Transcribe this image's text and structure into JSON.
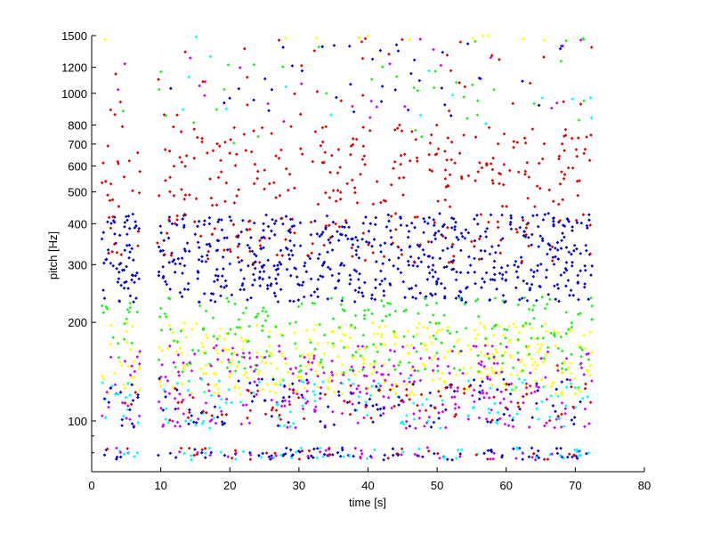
{
  "chart_data": {
    "type": "scatter",
    "title": "",
    "xlabel": "time [s]",
    "ylabel": "pitch [Hz]",
    "xlim": [
      0,
      80
    ],
    "ylim": [
      70,
      1500
    ],
    "y_scale": "log",
    "grid": false,
    "x_ticks": [
      0,
      10,
      20,
      30,
      40,
      50,
      60,
      70,
      80
    ],
    "x_tick_labels": [
      "0",
      "10",
      "20",
      "30",
      "40",
      "50",
      "60",
      "70",
      "80"
    ],
    "y_ticks": [
      100,
      200,
      300,
      400,
      500,
      600,
      700,
      800,
      1000,
      1200,
      1500
    ],
    "y_tick_labels": [
      "100",
      "200",
      "300",
      "400",
      "500",
      "600",
      "700",
      "800",
      "1000",
      "1200",
      "1500"
    ],
    "y_minor_ticks": [
      80,
      90
    ],
    "series_colors": {
      "blue": "#0000cc",
      "red": "#dd0000",
      "green": "#22ee22",
      "yellow": "#ffff00",
      "magenta": "#cc00ff",
      "cyan": "#00ffff"
    },
    "point_clusters": [
      {
        "color": "blue",
        "pitch_hz": [
          230,
          430
        ],
        "time_s": [
          1.5,
          72.5
        ],
        "points": 700
      },
      {
        "color": "red",
        "pitch_hz": [
          450,
          800
        ],
        "time_s": [
          1.5,
          72.5
        ],
        "points": 260
      },
      {
        "color": "red",
        "pitch_hz": [
          300,
          430
        ],
        "time_s": [
          1.5,
          72.5
        ],
        "points": 120
      },
      {
        "color": "yellow",
        "pitch_hz": [
          120,
          200
        ],
        "time_s": [
          1.5,
          72.5
        ],
        "points": 420
      },
      {
        "color": "green",
        "pitch_hz": [
          140,
          240
        ],
        "time_s": [
          1.5,
          72.5
        ],
        "points": 260
      },
      {
        "color": "magenta",
        "pitch_hz": [
          95,
          170
        ],
        "time_s": [
          1.5,
          72.5
        ],
        "points": 300
      },
      {
        "color": "cyan",
        "pitch_hz": [
          95,
          135
        ],
        "time_s": [
          1.5,
          72.5
        ],
        "points": 130
      },
      {
        "color": "blue",
        "pitch_hz": [
          95,
          135
        ],
        "time_s": [
          1.5,
          72.5
        ],
        "points": 120
      },
      {
        "color": "red",
        "pitch_hz": [
          100,
          130
        ],
        "time_s": [
          1.5,
          72.5
        ],
        "points": 80
      },
      {
        "color": "blue",
        "pitch_hz": [
          76,
          83
        ],
        "time_s": [
          1.5,
          72.5
        ],
        "points": 90
      },
      {
        "color": "cyan",
        "pitch_hz": [
          76,
          83
        ],
        "time_s": [
          1.5,
          72.5
        ],
        "points": 50
      },
      {
        "color": "magenta",
        "pitch_hz": [
          76,
          83
        ],
        "time_s": [
          1.5,
          72.5
        ],
        "points": 40
      },
      {
        "color": "red",
        "pitch_hz": [
          76,
          83
        ],
        "time_s": [
          1.5,
          72.5
        ],
        "points": 30
      },
      {
        "color": "red",
        "pitch_hz": [
          850,
          1500
        ],
        "time_s": [
          1.5,
          72.5
        ],
        "points": 40
      },
      {
        "color": "blue",
        "pitch_hz": [
          850,
          1500
        ],
        "time_s": [
          1.5,
          72.5
        ],
        "points": 40
      },
      {
        "color": "green",
        "pitch_hz": [
          700,
          1500
        ],
        "time_s": [
          1.5,
          72.5
        ],
        "points": 40
      },
      {
        "color": "magenta",
        "pitch_hz": [
          800,
          1500
        ],
        "time_s": [
          1.5,
          72.5
        ],
        "points": 25
      },
      {
        "color": "cyan",
        "pitch_hz": [
          800,
          1500
        ],
        "time_s": [
          1.5,
          72.5
        ],
        "points": 15
      },
      {
        "color": "yellow",
        "pitch_hz": [
          1450,
          1500
        ],
        "time_s": [
          1.5,
          72.5
        ],
        "points": 12
      }
    ],
    "gaps_s": [
      [
        7.0,
        9.5
      ]
    ]
  }
}
